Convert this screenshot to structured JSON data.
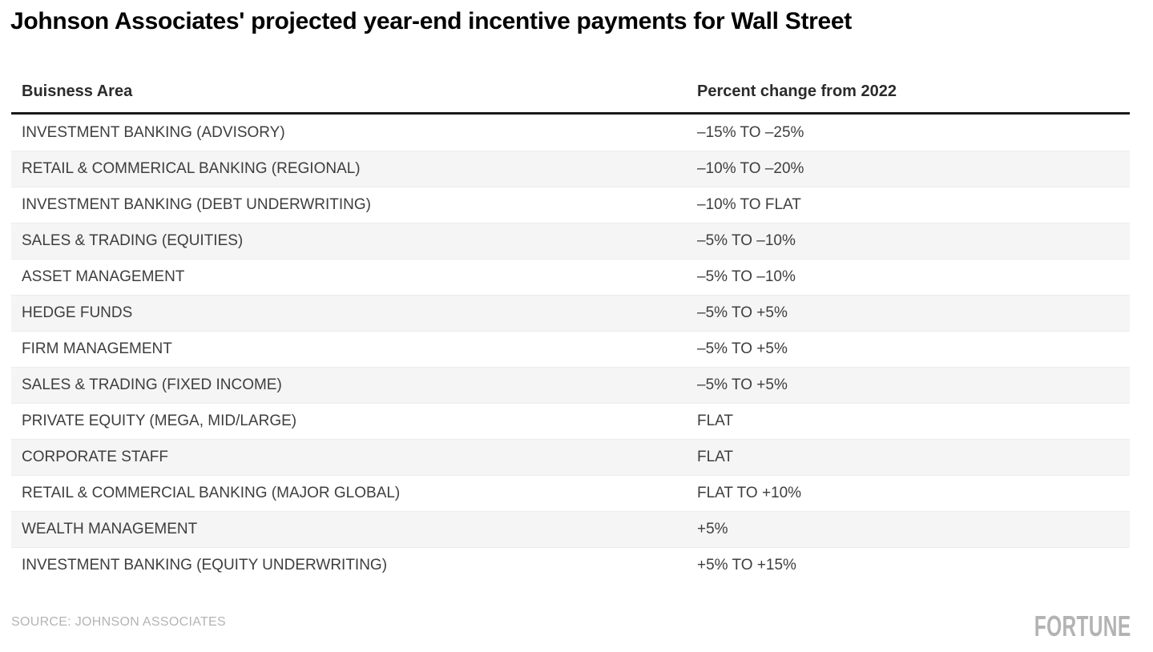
{
  "chart_data": {
    "type": "table",
    "title": "Johnson Associates' projected year-end incentive payments for Wall Street",
    "columns": [
      "Buisness Area",
      "Percent change from 2022"
    ],
    "rows": [
      [
        "INVESTMENT BANKING (ADVISORY)",
        "–15% TO –25%"
      ],
      [
        "RETAIL & COMMERICAL BANKING (REGIONAL)",
        "–10% TO –20%"
      ],
      [
        "INVESTMENT BANKING (DEBT UNDERWRITING)",
        "–10% TO FLAT"
      ],
      [
        "SALES & TRADING (EQUITIES)",
        "–5% TO –10%"
      ],
      [
        "ASSET MANAGEMENT",
        "–5% TO –10%"
      ],
      [
        "HEDGE FUNDS",
        "–5% TO +5%"
      ],
      [
        "FIRM MANAGEMENT",
        "–5% TO +5%"
      ],
      [
        "SALES & TRADING (FIXED INCOME)",
        "–5% TO +5%"
      ],
      [
        "PRIVATE EQUITY (MEGA, MID/LARGE)",
        "FLAT"
      ],
      [
        "CORPORATE STAFF",
        "FLAT"
      ],
      [
        "RETAIL & COMMERCIAL BANKING (MAJOR GLOBAL)",
        "FLAT TO +10%"
      ],
      [
        "WEALTH MANAGEMENT",
        "+5%"
      ],
      [
        "INVESTMENT BANKING (EQUITY UNDERWRITING)",
        "+5% TO +15%"
      ]
    ],
    "layout": {
      "stripe_rows": "even",
      "header_rule": true
    }
  },
  "footer": {
    "source": "SOURCE: JOHNSON ASSOCIATES",
    "brand": "FORTUNE"
  },
  "colors": {
    "title_text": "#000000",
    "header_text": "#2b2b2b",
    "row_text": "#3e3e3e",
    "stripe": "#f5f5f5",
    "row_border": "#ececec",
    "header_rule": "#1a1a1a",
    "muted_text": "#b4b4b4"
  }
}
